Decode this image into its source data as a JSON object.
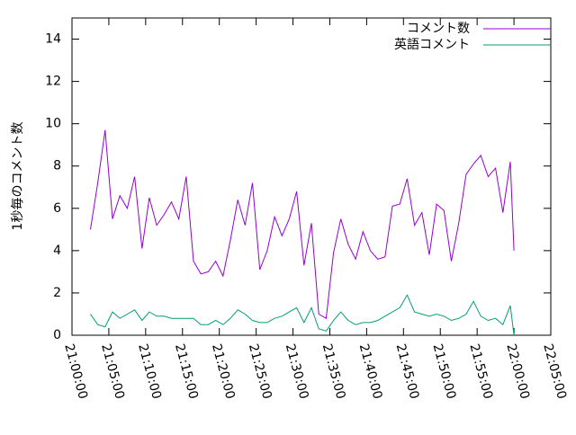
{
  "chart_data": {
    "type": "line",
    "y_label": "1秒毎のコメント数",
    "x": [
      "21:02:30",
      "21:03:30",
      "21:04:30",
      "21:05:30",
      "21:06:30",
      "21:07:30",
      "21:08:30",
      "21:09:30",
      "21:10:30",
      "21:11:30",
      "21:12:30",
      "21:13:30",
      "21:14:30",
      "21:15:30",
      "21:16:30",
      "21:17:30",
      "21:18:30",
      "21:19:30",
      "21:20:30",
      "21:21:30",
      "21:22:30",
      "21:23:30",
      "21:24:30",
      "21:25:30",
      "21:26:30",
      "21:27:30",
      "21:28:30",
      "21:29:30",
      "21:30:30",
      "21:31:30",
      "21:32:30",
      "21:33:30",
      "21:34:30",
      "21:35:30",
      "21:36:30",
      "21:37:30",
      "21:38:30",
      "21:39:30",
      "21:40:30",
      "21:41:30",
      "21:42:30",
      "21:43:30",
      "21:44:30",
      "21:45:30",
      "21:46:30",
      "21:47:30",
      "21:48:30",
      "21:49:30",
      "21:50:30",
      "21:51:30",
      "21:52:30",
      "21:53:30",
      "21:54:30",
      "21:55:30",
      "21:56:30",
      "21:57:30",
      "21:58:30",
      "21:59:30",
      "22:00:00"
    ],
    "series": [
      {
        "name": "コメント数",
        "color": "#9400d3",
        "values": [
          5.0,
          7.2,
          9.7,
          5.5,
          6.6,
          6.0,
          7.5,
          4.1,
          6.5,
          5.2,
          5.7,
          6.3,
          5.5,
          7.5,
          3.5,
          2.9,
          3.0,
          3.5,
          2.8,
          4.5,
          6.4,
          5.2,
          7.2,
          3.1,
          4.0,
          5.6,
          4.7,
          5.5,
          6.8,
          3.3,
          5.3,
          1.0,
          0.8,
          3.9,
          5.5,
          4.3,
          3.6,
          4.9,
          4.0,
          3.6,
          3.7,
          6.1,
          6.2,
          7.4,
          5.2,
          5.8,
          3.8,
          6.2,
          5.9,
          3.5,
          5.3,
          7.6,
          8.1,
          8.5,
          7.5,
          7.9,
          5.8,
          8.2,
          4.0
        ]
      },
      {
        "name": "英語コメント",
        "color": "#009e73",
        "values": [
          1.0,
          0.5,
          0.4,
          1.1,
          0.8,
          1.0,
          1.2,
          0.7,
          1.1,
          0.9,
          0.9,
          0.8,
          0.8,
          0.8,
          0.8,
          0.5,
          0.5,
          0.7,
          0.5,
          0.8,
          1.2,
          1.0,
          0.7,
          0.6,
          0.6,
          0.8,
          0.9,
          1.1,
          1.3,
          0.6,
          1.3,
          0.3,
          0.2,
          0.7,
          1.1,
          0.7,
          0.5,
          0.6,
          0.6,
          0.7,
          0.9,
          1.1,
          1.3,
          1.9,
          1.1,
          1.0,
          0.9,
          1.0,
          0.9,
          0.7,
          0.8,
          1.0,
          1.6,
          0.9,
          0.7,
          0.8,
          0.5,
          1.4,
          0.0
        ]
      }
    ],
    "xlim": [
      "21:00:00",
      "22:05:00"
    ],
    "xticks": [
      "21:00:00",
      "21:05:00",
      "21:10:00",
      "21:15:00",
      "21:20:00",
      "21:25:00",
      "21:30:00",
      "21:35:00",
      "21:40:00",
      "21:45:00",
      "21:50:00",
      "21:55:00",
      "22:00:00",
      "22:05:00"
    ],
    "ylim": [
      0,
      15
    ],
    "yticks": [
      0,
      2,
      4,
      6,
      8,
      10,
      12,
      14
    ],
    "legend": "top-right"
  }
}
